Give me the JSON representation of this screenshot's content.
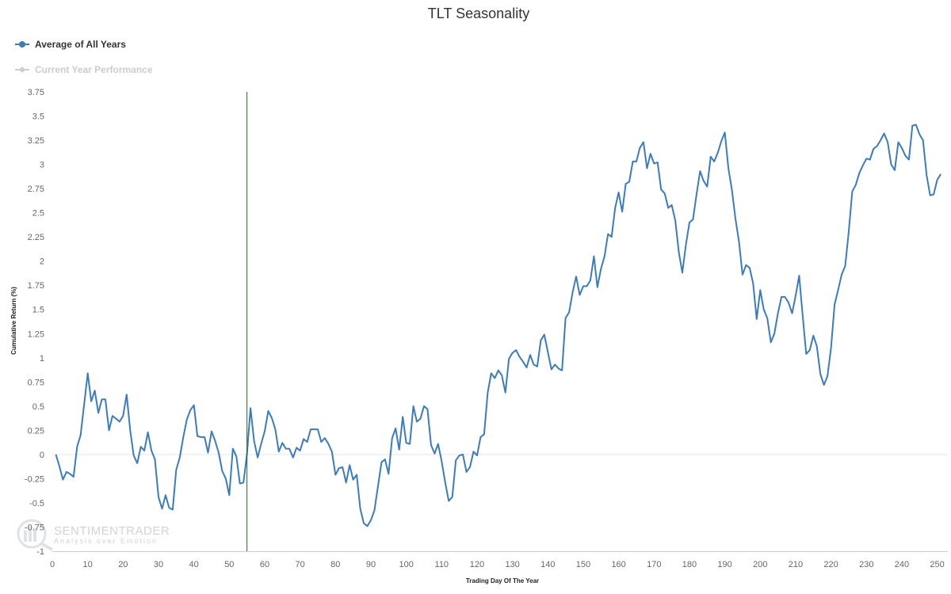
{
  "chart_data": {
    "type": "line",
    "title": "TLT Seasonality",
    "xlabel": "Trading Day Of The Year",
    "ylabel": "Cumulative Return (%)",
    "xlim": [
      0,
      253
    ],
    "ylim": [
      -1,
      3.75
    ],
    "x_ticks": [
      0,
      10,
      20,
      30,
      40,
      50,
      60,
      70,
      80,
      90,
      100,
      110,
      120,
      130,
      140,
      150,
      160,
      170,
      180,
      190,
      200,
      210,
      220,
      230,
      240,
      250
    ],
    "y_ticks": [
      -1,
      -0.75,
      -0.5,
      -0.25,
      0,
      0.25,
      0.5,
      0.75,
      1,
      1.25,
      1.5,
      1.75,
      2,
      2.25,
      2.5,
      2.75,
      3,
      3.25,
      3.5,
      3.75
    ],
    "current_day_marker": 55,
    "legend_position": "top-left",
    "series": [
      {
        "name": "Average of All Years",
        "color": "#3a7cc1",
        "active": true,
        "x": [
          1,
          2,
          3,
          4,
          5,
          6,
          7,
          8,
          9,
          10,
          11,
          12,
          13,
          14,
          15,
          16,
          17,
          18,
          19,
          20,
          21,
          22,
          23,
          24,
          25,
          26,
          27,
          28,
          29,
          30,
          31,
          32,
          33,
          34,
          35,
          36,
          37,
          38,
          39,
          40,
          41,
          42,
          43,
          44,
          45,
          46,
          47,
          48,
          49,
          50,
          51,
          52,
          53,
          54,
          55,
          56,
          57,
          58,
          59,
          60,
          61,
          62,
          63,
          64,
          65,
          66,
          67,
          68,
          69,
          70,
          71,
          72,
          73,
          74,
          75,
          76,
          77,
          78,
          79,
          80,
          81,
          82,
          83,
          84,
          85,
          86,
          87,
          88,
          89,
          90,
          91,
          92,
          93,
          94,
          95,
          96,
          97,
          98,
          99,
          100,
          101,
          102,
          103,
          104,
          105,
          106,
          107,
          108,
          109,
          110,
          111,
          112,
          113,
          114,
          115,
          116,
          117,
          118,
          119,
          120,
          121,
          122,
          123,
          124,
          125,
          126,
          127,
          128,
          129,
          130,
          131,
          132,
          133,
          134,
          135,
          136,
          137,
          138,
          139,
          140,
          141,
          142,
          143,
          144,
          145,
          146,
          147,
          148,
          149,
          150,
          151,
          152,
          153,
          154,
          155,
          156,
          157,
          158,
          159,
          160,
          161,
          162,
          163,
          164,
          165,
          166,
          167,
          168,
          169,
          170,
          171,
          172,
          173,
          174,
          175,
          176,
          177,
          178,
          179,
          180,
          181,
          182,
          183,
          184,
          185,
          186,
          187,
          188,
          189,
          190,
          191,
          192,
          193,
          194,
          195,
          196,
          197,
          198,
          199,
          200,
          201,
          202,
          203,
          204,
          205,
          206,
          207,
          208,
          209,
          210,
          211,
          212,
          213,
          214,
          215,
          216,
          217,
          218,
          219,
          220,
          221,
          222,
          223,
          224,
          225,
          226,
          227,
          228,
          229,
          230,
          231,
          232,
          233,
          234,
          235,
          236,
          237,
          238,
          239,
          240,
          241,
          242,
          243,
          244,
          245,
          246,
          247,
          248,
          249,
          250,
          251
        ],
        "values": [
          0,
          -0.12,
          -0.26,
          -0.18,
          -0.2,
          -0.23,
          0.08,
          0.2,
          0.52,
          0.84,
          0.55,
          0.66,
          0.43,
          0.57,
          0.57,
          0.25,
          0.4,
          0.37,
          0.34,
          0.4,
          0.62,
          0.25,
          -0.01,
          -0.09,
          0.08,
          0.04,
          0.23,
          0.04,
          -0.05,
          -0.44,
          -0.56,
          -0.42,
          -0.55,
          -0.57,
          -0.16,
          -0.03,
          0.18,
          0.36,
          0.46,
          0.51,
          0.19,
          0.18,
          0.18,
          0.02,
          0.24,
          0.14,
          0.02,
          -0.17,
          -0.25,
          -0.42,
          0.06,
          -0.02,
          -0.3,
          -0.29,
          0.01,
          0.48,
          0.14,
          -0.03,
          0.11,
          0.24,
          0.45,
          0.38,
          0.26,
          0.03,
          0.12,
          0.06,
          0.06,
          -0.03,
          0.07,
          0.04,
          0.16,
          0.13,
          0.26,
          0.26,
          0.26,
          0.13,
          0.17,
          0.11,
          0.03,
          -0.21,
          -0.14,
          -0.13,
          -0.29,
          -0.11,
          -0.26,
          -0.21,
          -0.56,
          -0.71,
          -0.74,
          -0.68,
          -0.58,
          -0.33,
          -0.08,
          -0.05,
          -0.2,
          0.17,
          0.27,
          0.05,
          0.39,
          0.12,
          0.11,
          0.5,
          0.34,
          0.37,
          0.5,
          0.47,
          0.1,
          0.01,
          0.11,
          -0.07,
          -0.29,
          -0.48,
          -0.44,
          -0.06,
          -0.01,
          0,
          -0.18,
          -0.13,
          0.03,
          -0.01,
          0.18,
          0.21,
          0.64,
          0.84,
          0.79,
          0.87,
          0.82,
          0.64,
          0.99,
          1.05,
          1.08,
          1.01,
          0.96,
          0.9,
          1.03,
          0.93,
          0.91,
          1.18,
          1.24,
          1.06,
          0.88,
          0.93,
          0.89,
          0.87,
          1.41,
          1.47,
          1.68,
          1.84,
          1.65,
          1.74,
          1.74,
          1.8,
          2.05,
          1.73,
          1.92,
          2.05,
          2.28,
          2.25,
          2.55,
          2.71,
          2.51,
          2.8,
          2.82,
          3.03,
          3.03,
          3.17,
          3.23,
          2.96,
          3.11,
          3.01,
          3.02,
          2.74,
          2.7,
          2.55,
          2.58,
          2.42,
          2.09,
          1.88,
          2.17,
          2.4,
          2.43,
          2.69,
          2.93,
          2.83,
          2.77,
          3.08,
          3.03,
          3.12,
          3.24,
          3.33,
          2.96,
          2.74,
          2.44,
          2.2,
          1.86,
          1.96,
          1.93,
          1.77,
          1.4,
          1.7,
          1.5,
          1.41,
          1.16,
          1.25,
          1.46,
          1.63,
          1.63,
          1.57,
          1.46,
          1.64,
          1.85,
          1.43,
          1.04,
          1.08,
          1.23,
          1.12,
          0.83,
          0.72,
          0.81,
          1.1,
          1.55,
          1.7,
          1.86,
          1.95,
          2.3,
          2.72,
          2.79,
          2.91,
          2.99,
          3.06,
          3.05,
          3.16,
          3.19,
          3.25,
          3.32,
          3.23,
          3.0,
          2.94,
          3.23,
          3.17,
          3.09,
          3.05,
          3.4,
          3.41,
          3.31,
          3.25,
          2.89,
          2.68,
          2.69,
          2.84,
          2.9
        ]
      },
      {
        "name": "Current Year Performance",
        "color": "#cccccc",
        "active": false,
        "x": [],
        "values": []
      }
    ]
  },
  "watermark": {
    "name": "SENTIMENTRADER",
    "tagline": "Analysis over Emotion"
  }
}
